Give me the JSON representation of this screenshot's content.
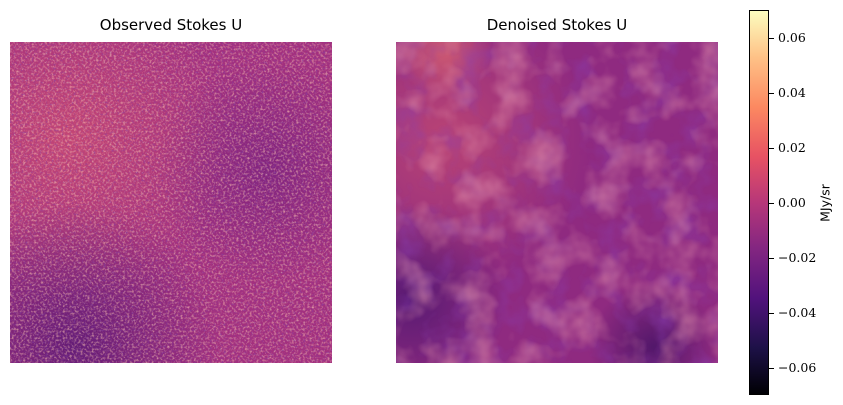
{
  "chart_data": [
    {
      "type": "heatmap",
      "title": "Observed Stokes U",
      "colormap": "magma",
      "axes": "off",
      "noise": "high"
    },
    {
      "type": "heatmap",
      "title": "Denoised Stokes U",
      "colormap": "magma",
      "axes": "off",
      "noise": "low"
    }
  ],
  "colorbar": {
    "label": "MJy/sr",
    "range": [
      -0.07,
      0.07
    ],
    "ticks": [
      0.06,
      0.04,
      0.02,
      0.0,
      -0.02,
      -0.04,
      -0.06
    ],
    "tick_labels": [
      "0.06",
      "0.04",
      "0.02",
      "0.00",
      "−0.02",
      "−0.04",
      "−0.06"
    ]
  }
}
